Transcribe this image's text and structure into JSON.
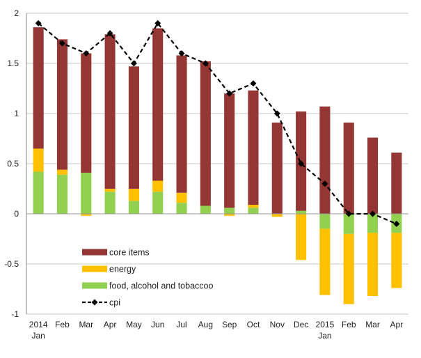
{
  "chart_data": {
    "type": "bar",
    "stacked": true,
    "categories": [
      [
        "2014",
        "Jan"
      ],
      [
        "Feb"
      ],
      [
        "Mar"
      ],
      [
        "Apr"
      ],
      [
        "May"
      ],
      [
        "Jun"
      ],
      [
        "Jul"
      ],
      [
        "Aug"
      ],
      [
        "Sep"
      ],
      [
        "Oct"
      ],
      [
        "Nov"
      ],
      [
        "Dec"
      ],
      [
        "2015",
        "Jan"
      ],
      [
        "Feb"
      ],
      [
        "Mar"
      ],
      [
        "Apr"
      ]
    ],
    "ylim": [
      -1,
      2
    ],
    "yticks": [
      -1,
      -0.5,
      0,
      0.5,
      1,
      1.5,
      2
    ],
    "ytick_labels": [
      "-1",
      "-0.5",
      "0",
      "0.5",
      "1",
      "1.5",
      "2"
    ],
    "grid": true,
    "legend_position": "bottom-left",
    "series": [
      {
        "name": "food, alcohol and tobaccoo",
        "kind": "bar",
        "color": "#92D050",
        "values": [
          0.42,
          0.39,
          0.41,
          0.22,
          0.13,
          0.22,
          0.11,
          0.08,
          0.06,
          0.06,
          0.0,
          0.03,
          -0.15,
          -0.2,
          -0.19,
          -0.19
        ]
      },
      {
        "name": "energy",
        "kind": "bar",
        "color": "#FFC000",
        "values": [
          0.23,
          0.05,
          -0.02,
          0.03,
          0.12,
          0.11,
          0.1,
          0.0,
          -0.02,
          0.03,
          -0.03,
          -0.46,
          -0.66,
          -0.7,
          -0.63,
          -0.55
        ]
      },
      {
        "name": "core items",
        "kind": "bar",
        "color": "#943634",
        "values": [
          1.21,
          1.3,
          1.19,
          1.54,
          1.22,
          1.52,
          1.37,
          1.44,
          1.14,
          1.14,
          0.91,
          0.99,
          1.07,
          0.91,
          0.76,
          0.61
        ]
      },
      {
        "name": "cpi",
        "kind": "line",
        "color": "#000000",
        "values": [
          1.9,
          1.7,
          1.6,
          1.8,
          1.5,
          1.9,
          1.6,
          1.5,
          1.2,
          1.3,
          1.0,
          0.5,
          0.3,
          0.0,
          0.0,
          -0.1
        ]
      }
    ],
    "legend_order": [
      "core items",
      "energy",
      "food, alcohol and tobaccoo",
      "cpi"
    ]
  }
}
